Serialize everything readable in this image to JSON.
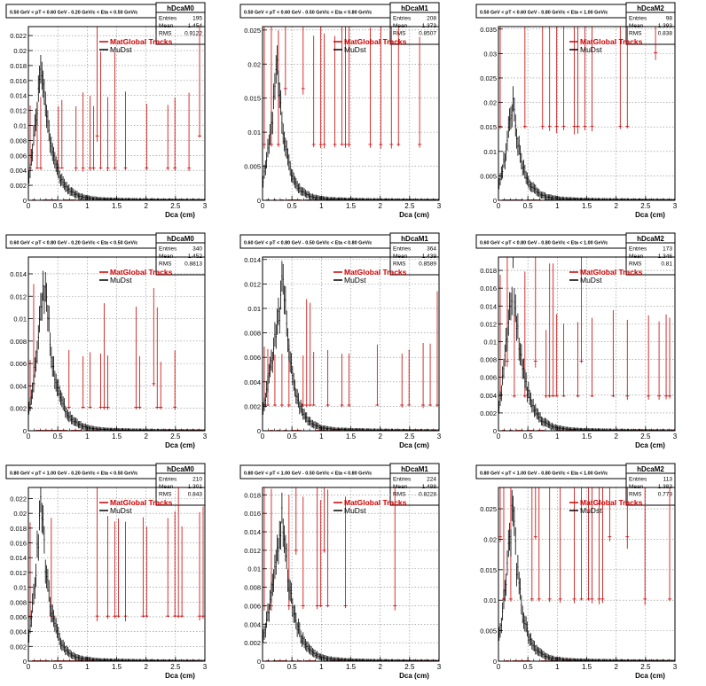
{
  "legend_labels": [
    "MatGlobal Tracks",
    "MuDst"
  ],
  "colors": {
    "matglobal": "#cc0000",
    "mudst": "#000000",
    "grid": "#888888"
  },
  "stat_labels": {
    "entries": "Entries",
    "mean": "Mean",
    "rms": "RMS"
  },
  "chart_data": [
    {
      "type": "histogram",
      "panel_title": "0.50 GeV < pT < 0.60 GeV - 0.20 GeV/c < Eta < 0.50 GeV/c",
      "name": "hDcaM0",
      "entries": "195",
      "mean": "1.454",
      "rms": "0.9122",
      "xlabel": "Dca (cm)",
      "xlim": [
        0,
        3
      ],
      "ylim": [
        0,
        0.0232
      ],
      "x_ticks": [
        "0",
        "0.5",
        "1",
        "1.5",
        "2",
        "2.5",
        "3"
      ],
      "y_ticks": [
        "0",
        "0.002",
        "0.004",
        "0.006",
        "0.008",
        "0.01",
        "0.012",
        "0.014",
        "0.016",
        "0.018",
        "0.02",
        "0.022"
      ],
      "level": 0.0043,
      "pk": 0.019,
      "pkx": 0.22,
      "decay": 0.17,
      "seed": 11
    },
    {
      "type": "histogram",
      "panel_title": "0.50 GeV < pT < 0.60 GeV - 0.50 GeV/c < Eta < 0.80 GeV/c",
      "name": "hDcaM1",
      "entries": "208",
      "mean": "1.373",
      "rms": "0.8507",
      "xlabel": "Dca (cm)",
      "xlim": [
        0,
        3
      ],
      "ylim": [
        0,
        0.0255
      ],
      "x_ticks": [
        "0",
        "0.5",
        "1",
        "1.5",
        "2",
        "2.5",
        "3"
      ],
      "y_ticks": [
        "0",
        "0.005",
        "0.01",
        "0.015",
        "0.02",
        "0.025"
      ],
      "level": 0.0082,
      "pk": 0.019,
      "pkx": 0.25,
      "decay": 0.15,
      "seed": 23
    },
    {
      "type": "histogram",
      "panel_title": "0.50 GeV < pT < 0.60 GeV - 0.80 GeV/c < Eta < 1.00 GeV/c",
      "name": "hDcaM2",
      "entries": "98",
      "mean": "1.393",
      "rms": "0.838",
      "xlabel": "Dca (cm)",
      "xlim": [
        0,
        3
      ],
      "ylim": [
        0,
        0.0355
      ],
      "x_ticks": [
        "0",
        "0.5",
        "1",
        "1.5",
        "2",
        "2.5",
        "3"
      ],
      "y_ticks": [
        "0",
        "0.005",
        "0.01",
        "0.015",
        "0.02",
        "0.025",
        "0.03",
        "0.035"
      ],
      "level": 0.0151,
      "pk": 0.0195,
      "pkx": 0.24,
      "decay": 0.16,
      "seed": 37
    },
    {
      "type": "histogram",
      "panel_title": "0.60 GeV < pT < 0.80 GeV - 0.20 GeV/c < Eta < 0.50 GeV/c",
      "name": "hDcaM0",
      "entries": "340",
      "mean": "1.452",
      "rms": "0.8813",
      "xlabel": "Dca (cm)",
      "xlim": [
        0,
        3
      ],
      "ylim": [
        0,
        0.0155
      ],
      "x_ticks": [
        "0",
        "0.5",
        "1",
        "1.5",
        "2",
        "2.5",
        "3"
      ],
      "y_ticks": [
        "0",
        "0.002",
        "0.004",
        "0.006",
        "0.008",
        "0.01",
        "0.012",
        "0.014"
      ],
      "level": 0.0021,
      "pk": 0.0135,
      "pkx": 0.28,
      "decay": 0.17,
      "seed": 41
    },
    {
      "type": "histogram",
      "panel_title": "0.60 GeV < pT < 0.80 GeV - 0.50 GeV/c < Eta < 0.80 GeV/c",
      "name": "hDcaM1",
      "entries": "364",
      "mean": "1.439",
      "rms": "0.8589",
      "xlabel": "Dca (cm)",
      "xlim": [
        0,
        3
      ],
      "ylim": [
        0,
        0.0142
      ],
      "x_ticks": [
        "0",
        "0.5",
        "1",
        "1.5",
        "2",
        "2.5",
        "3"
      ],
      "y_ticks": [
        "0",
        "0.002",
        "0.004",
        "0.006",
        "0.008",
        "0.01",
        "0.012",
        "0.014"
      ],
      "level": 0.0021,
      "pk": 0.0125,
      "pkx": 0.35,
      "decay": 0.15,
      "seed": 53
    },
    {
      "type": "histogram",
      "panel_title": "0.60 GeV < pT < 0.80 GeV - 0.80 GeV/c < Eta < 1.00 GeV/c",
      "name": "hDcaM2",
      "entries": "173",
      "mean": "1.346",
      "rms": "0.81",
      "xlabel": "Dca (cm)",
      "xlim": [
        0,
        3
      ],
      "ylim": [
        0,
        0.0195
      ],
      "x_ticks": [
        "0",
        "0.5",
        "1",
        "1.5",
        "2",
        "2.5",
        "3"
      ],
      "y_ticks": [
        "0",
        "0.002",
        "0.004",
        "0.006",
        "0.008",
        "0.01",
        "0.012",
        "0.014",
        "0.016",
        "0.018"
      ],
      "level": 0.0039,
      "pk": 0.018,
      "pkx": 0.25,
      "decay": 0.17,
      "seed": 67
    },
    {
      "type": "histogram",
      "panel_title": "0.80 GeV < pT < 1.00 GeV - 0.20 GeV/c < Eta < 0.50 GeV/c",
      "name": "hDcaM0",
      "entries": "210",
      "mean": "1.301",
      "rms": "0.843",
      "xlabel": "Dca (cm)",
      "xlim": [
        0,
        3
      ],
      "ylim": [
        0,
        0.0235
      ],
      "x_ticks": [
        "0",
        "0.5",
        "1",
        "1.5",
        "2",
        "2.5",
        "3"
      ],
      "y_ticks": [
        "0",
        "0.002",
        "0.004",
        "0.006",
        "0.008",
        "0.01",
        "0.012",
        "0.014",
        "0.016",
        "0.018",
        "0.02",
        "0.022"
      ],
      "level": 0.0061,
      "pk": 0.0215,
      "pkx": 0.22,
      "decay": 0.15,
      "seed": 71
    },
    {
      "type": "histogram",
      "panel_title": "0.80 GeV < pT < 1.00 GeV - 0.50 GeV/c < Eta < 0.80 GeV/c",
      "name": "hDcaM1",
      "entries": "224",
      "mean": "1.488",
      "rms": "0.8228",
      "xlabel": "Dca (cm)",
      "xlim": [
        0,
        3
      ],
      "ylim": [
        0,
        0.0188
      ],
      "x_ticks": [
        "0",
        "0.5",
        "1",
        "1.5",
        "2",
        "2.5",
        "3"
      ],
      "y_ticks": [
        "0",
        "0.002",
        "0.004",
        "0.006",
        "0.008",
        "0.01",
        "0.012",
        "0.014",
        "0.016",
        "0.018"
      ],
      "level": 0.006,
      "pk": 0.016,
      "pkx": 0.34,
      "decay": 0.17,
      "seed": 83
    },
    {
      "type": "histogram",
      "panel_title": "0.80 GeV < pT < 1.00 GeV - 0.80 GeV/c < Eta < 1.00 GeV/c",
      "name": "hDcaM2",
      "entries": "113",
      "mean": "1.383",
      "rms": "0.773",
      "xlabel": "Dca (cm)",
      "xlim": [
        0,
        3
      ],
      "ylim": [
        0,
        0.0285
      ],
      "x_ticks": [
        "0",
        "0.5",
        "1",
        "1.5",
        "2",
        "2.5",
        "3"
      ],
      "y_ticks": [
        "0",
        "0.005",
        "0.01",
        "0.015",
        "0.02",
        "0.025"
      ],
      "level": 0.0102,
      "pk": 0.025,
      "pkx": 0.24,
      "decay": 0.15,
      "seed": 97
    }
  ]
}
